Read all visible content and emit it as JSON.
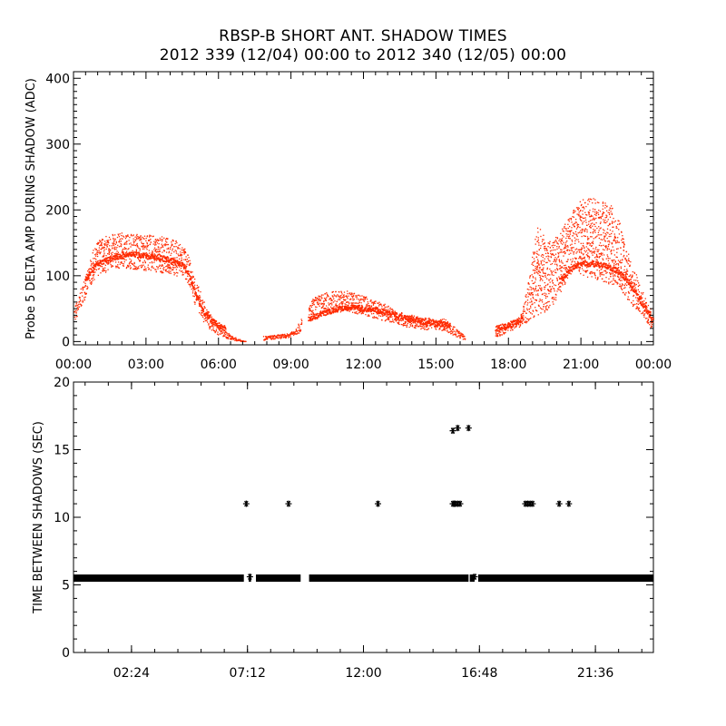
{
  "chart_data": [
    {
      "type": "scatter",
      "title": "RBSP-B SHORT ANT. SHADOW TIMES",
      "subtitle": "2012 339 (12/04) 00:00 to 2012 340 (12/05) 00:00",
      "ylabel": "Probe 5 DELTA AMP DURING SHADOW (ADC)",
      "xlabel": "",
      "xlim_hours": [
        0,
        24
      ],
      "ylim": [
        -5,
        410
      ],
      "xticks": [
        "00:00",
        "03:00",
        "06:00",
        "09:00",
        "12:00",
        "15:00",
        "18:00",
        "21:00",
        "00:00"
      ],
      "yticks": [
        "0",
        "100",
        "200",
        "300",
        "400"
      ],
      "grid": false,
      "marker_color": "#ff2a00",
      "series": [
        {
          "band": "upper",
          "x_hours": [
            0.0,
            0.2,
            0.4,
            0.6,
            0.8,
            1.0,
            1.5,
            2.0,
            2.5,
            3.0,
            3.5,
            4.0,
            4.5,
            4.8,
            5.0,
            5.3,
            5.6,
            6.0,
            6.3,
            6.6,
            6.9,
            7.1,
            7.9,
            8.4,
            8.9,
            9.3,
            9.8,
            10.0,
            10.5,
            11.0,
            11.5,
            12.0,
            12.5,
            13.0,
            13.3,
            13.8,
            14.2,
            14.6,
            15.0,
            15.4,
            15.8,
            16.2,
            16.6,
            17.2,
            17.6,
            18.0,
            18.5,
            18.8,
            19.2,
            19.6,
            20.0,
            20.3,
            20.7,
            21.0,
            21.5,
            22.0,
            22.3,
            22.6,
            23.0,
            23.5,
            24.0
          ],
          "y_top": [
            50,
            65,
            90,
            110,
            135,
            155,
            162,
            165,
            164,
            163,
            160,
            157,
            150,
            125,
            100,
            70,
            45,
            25,
            16,
            8,
            3,
            0,
            8,
            10,
            12,
            25,
            60,
            68,
            75,
            78,
            76,
            70,
            62,
            55,
            48,
            42,
            38,
            36,
            35,
            34,
            22,
            8,
            2,
            10,
            18,
            28,
            40,
            80,
            180,
            150,
            160,
            175,
            205,
            215,
            218,
            215,
            205,
            180,
            130,
            80,
            40
          ],
          "y_bottom": [
            25,
            40,
            60,
            75,
            90,
            100,
            108,
            112,
            110,
            108,
            105,
            102,
            98,
            85,
            60,
            35,
            20,
            10,
            5,
            2,
            0,
            0,
            2,
            4,
            6,
            12,
            30,
            38,
            42,
            45,
            44,
            40,
            35,
            30,
            26,
            22,
            20,
            18,
            18,
            16,
            8,
            2,
            0,
            3,
            8,
            15,
            22,
            30,
            40,
            45,
            60,
            80,
            110,
            100,
            95,
            90,
            85,
            80,
            60,
            40,
            15
          ]
        },
        {
          "band": "lower",
          "x_hours": [
            0.5,
            1.0,
            1.5,
            2.0,
            2.5,
            3.0,
            3.5,
            4.0,
            4.5,
            4.8,
            5.1,
            5.4,
            5.8,
            6.2,
            9.8,
            10.5,
            11.0,
            11.5,
            12.0,
            12.5,
            13.0,
            13.5,
            14.0,
            14.5,
            15.0,
            15.5,
            17.5,
            18.0,
            18.5,
            20.2,
            20.6,
            21.0,
            21.5,
            22.0,
            22.5,
            23.0,
            23.5,
            24.0
          ],
          "y": [
            95,
            118,
            125,
            130,
            132,
            130,
            127,
            124,
            118,
            100,
            70,
            45,
            30,
            20,
            35,
            45,
            50,
            52,
            50,
            47,
            44,
            38,
            33,
            30,
            28,
            25,
            20,
            25,
            32,
            95,
            110,
            118,
            118,
            115,
            108,
            90,
            60,
            30
          ]
        }
      ]
    },
    {
      "type": "scatter",
      "title": "",
      "ylabel": "TIME BETWEEN SHADOWS (SEC)",
      "xlabel": "",
      "xlim_hours": [
        0,
        24
      ],
      "ylim": [
        0,
        20
      ],
      "xticks": [
        "02:24",
        "07:12",
        "12:00",
        "16:48",
        "21:36"
      ],
      "yticks": [
        "0",
        "5",
        "10",
        "15",
        "20"
      ],
      "grid": false,
      "marker": "asterisk",
      "marker_color": "#000000",
      "baseline": {
        "y": 5.5,
        "segments_hours": [
          [
            0.0,
            7.05
          ],
          [
            7.25,
            7.35
          ],
          [
            7.55,
            9.4
          ],
          [
            9.75,
            16.35
          ],
          [
            16.4,
            16.6
          ],
          [
            16.75,
            24.0
          ]
        ]
      },
      "points": {
        "x_hours": [
          7.15,
          7.3,
          8.9,
          12.6,
          15.7,
          15.75,
          15.8,
          15.9,
          16.0,
          16.6,
          18.7,
          18.8,
          18.9,
          19.0,
          20.1,
          20.5,
          15.7,
          15.9,
          16.35
        ],
        "y": [
          11,
          5.6,
          11,
          11,
          11,
          11,
          11,
          11,
          11,
          5.6,
          11,
          11,
          11,
          11,
          11,
          11,
          16.4,
          16.6,
          16.6
        ]
      }
    }
  ]
}
